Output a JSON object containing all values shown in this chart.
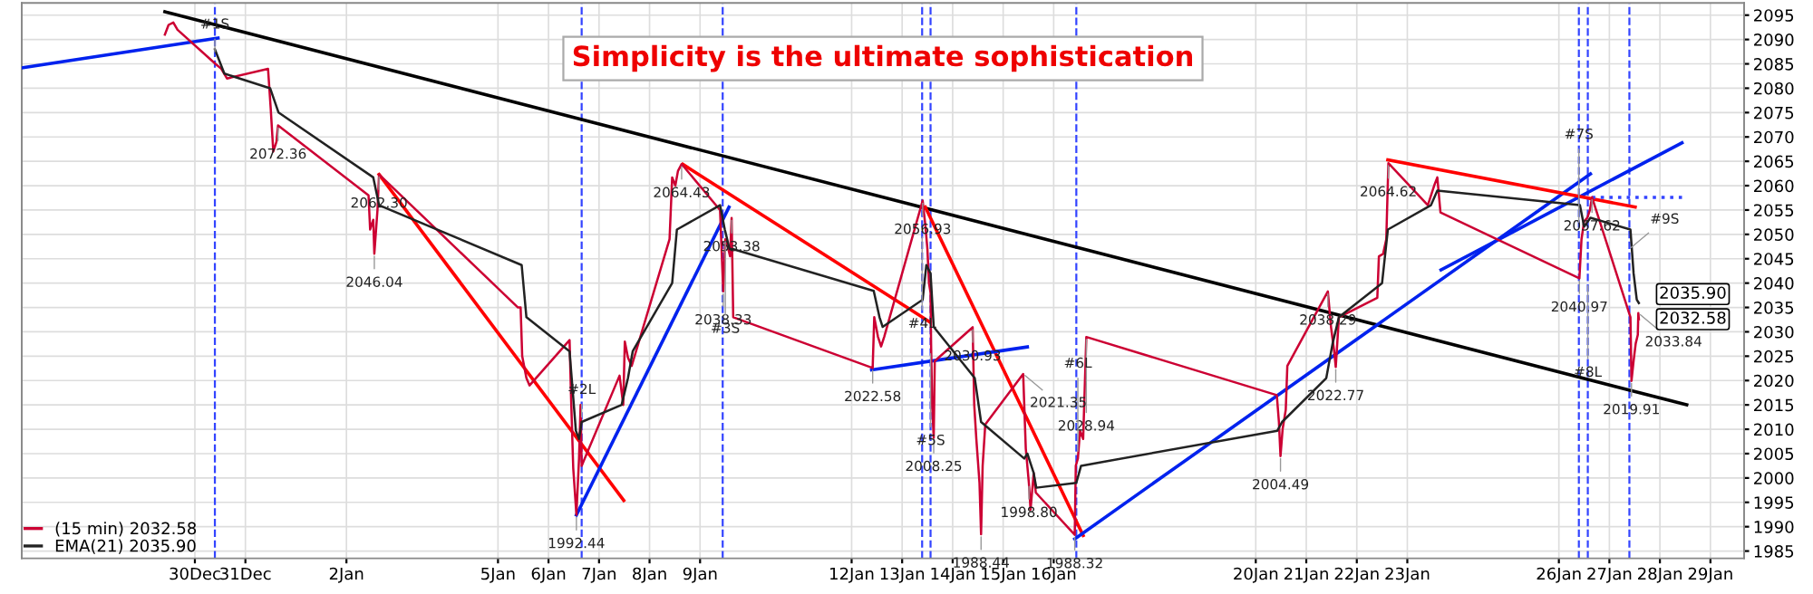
{
  "chart_data": {
    "type": "line",
    "xlim": [
      "2014-12-26T13:45",
      "2015-01-29T16:00"
    ],
    "ylim": [
      1983.5,
      2097.5
    ],
    "xticks": [
      {
        "value": "2014-12-30",
        "label": "30Dec"
      },
      {
        "value": "2014-12-31",
        "label": "31Dec"
      },
      {
        "value": "2015-01-02",
        "label": "2Jan"
      },
      {
        "value": "2015-01-05",
        "label": "5Jan"
      },
      {
        "value": "2015-01-06",
        "label": "6Jan"
      },
      {
        "value": "2015-01-07",
        "label": "7Jan"
      },
      {
        "value": "2015-01-08",
        "label": "8Jan"
      },
      {
        "value": "2015-01-09",
        "label": "9Jan"
      },
      {
        "value": "2015-01-12",
        "label": "12Jan"
      },
      {
        "value": "2015-01-13",
        "label": "13Jan"
      },
      {
        "value": "2015-01-14",
        "label": "14Jan"
      },
      {
        "value": "2015-01-15",
        "label": "15Jan"
      },
      {
        "value": "2015-01-16",
        "label": "16Jan"
      },
      {
        "value": "2015-01-20",
        "label": "20Jan"
      },
      {
        "value": "2015-01-21",
        "label": "21Jan"
      },
      {
        "value": "2015-01-22",
        "label": "22Jan"
      },
      {
        "value": "2015-01-23",
        "label": "23Jan"
      },
      {
        "value": "2015-01-26",
        "label": "26Jan"
      },
      {
        "value": "2015-01-27",
        "label": "27Jan"
      },
      {
        "value": "2015-01-28",
        "label": "28Jan"
      },
      {
        "value": "2015-01-29",
        "label": "29Jan"
      }
    ],
    "yticks": [
      1985,
      1990,
      1995,
      2000,
      2005,
      2010,
      2015,
      2020,
      2025,
      2030,
      2035,
      2040,
      2045,
      2050,
      2055,
      2060,
      2065,
      2070,
      2075,
      2080,
      2085,
      2090,
      2095
    ],
    "grid": true,
    "legend": "bottom left",
    "series": [
      {
        "name": "(15 min) 2032.58",
        "color": "#cc0033",
        "x": [
          "2014-12-29T09:45",
          "2014-12-29T11:30",
          "2014-12-29T13:45",
          "2014-12-29T15:45",
          "2014-12-30T09:45",
          "2014-12-30T12:30",
          "2014-12-30T15:15",
          "2014-12-31T10:45",
          "2014-12-31T12:00",
          "2014-12-31T13:15",
          "2014-12-31T14:45",
          "2014-12-31T15:30",
          "2015-01-02T10:30",
          "2015-01-02T11:15",
          "2015-01-02T12:45",
          "2015-01-02T13:15",
          "2015-01-02T14:45",
          "2015-01-02T15:30",
          "2015-01-05T09:30",
          "2015-01-05T10:45",
          "2015-01-05T11:30",
          "2015-01-05T13:30",
          "2015-01-05T15:00",
          "2015-01-06T10:00",
          "2015-01-06T10:45",
          "2015-01-06T11:45",
          "2015-01-06T13:15",
          "2015-01-06T14:30",
          "2015-01-06T15:15",
          "2015-01-06T15:45",
          "2015-01-07T09:45",
          "2015-01-07T11:30",
          "2015-01-07T12:15",
          "2015-01-07T13:45",
          "2015-01-07T15:30",
          "2015-01-08T09:30",
          "2015-01-08T10:45",
          "2015-01-08T12:15",
          "2015-01-08T13:30",
          "2015-01-08T15:15",
          "2015-01-09T09:30",
          "2015-01-09T11:00",
          "2015-01-09T12:00",
          "2015-01-09T13:15",
          "2015-01-09T14:15",
          "2015-01-09T15:00",
          "2015-01-09T15:45",
          "2015-01-12T10:00",
          "2015-01-12T10:45",
          "2015-01-12T12:30",
          "2015-01-12T14:00",
          "2015-01-12T15:30",
          "2015-01-13T09:45",
          "2015-01-13T11:00",
          "2015-01-13T12:00",
          "2015-01-13T12:45",
          "2015-01-13T13:30",
          "2015-01-13T13:45",
          "2015-01-13T14:15",
          "2015-01-13T15:00",
          "2015-01-13T15:30",
          "2015-01-14T09:30",
          "2015-01-14T10:15",
          "2015-01-14T11:15",
          "2015-01-14T12:45",
          "2015-01-14T13:30",
          "2015-01-14T14:15",
          "2015-01-14T15:30",
          "2015-01-15T09:30",
          "2015-01-15T10:45",
          "2015-01-15T12:15",
          "2015-01-15T13:00",
          "2015-01-15T14:30",
          "2015-01-15T15:30",
          "2015-01-16T10:00",
          "2015-01-16T10:30",
          "2015-01-16T11:30",
          "2015-01-16T12:30",
          "2015-01-16T14:00",
          "2015-01-16T15:30",
          "2015-01-20T10:00",
          "2015-01-20T11:00",
          "2015-01-20T11:45",
          "2015-01-20T12:45",
          "2015-01-20T14:15",
          "2015-01-20T15:00",
          "2015-01-21T10:15",
          "2015-01-21T11:45",
          "2015-01-21T13:15",
          "2015-01-21T14:00",
          "2015-01-21T15:30",
          "2015-01-22T09:45",
          "2015-01-22T10:30",
          "2015-01-22T12:30",
          "2015-01-22T14:00",
          "2015-01-22T15:00",
          "2015-01-23T09:45",
          "2015-01-23T11:15",
          "2015-01-23T12:45",
          "2015-01-23T14:15",
          "2015-01-23T15:45",
          "2015-01-26T09:45",
          "2015-01-26T10:45",
          "2015-01-26T12:00",
          "2015-01-26T13:30",
          "2015-01-26T14:45",
          "2015-01-26T15:45",
          "2015-01-27T10:00",
          "2015-01-27T10:30",
          "2015-01-27T11:30",
          "2015-01-27T12:30",
          "2015-01-27T13:30",
          "2015-01-27T13:45",
          "2015-01-27T14:00"
        ],
        "values": [
          2091,
          2093,
          2093.5,
          2092,
          2085,
          2084,
          2082,
          2084,
          2076,
          2067,
          2069,
          2072.36,
          2058,
          2051,
          2053,
          2046.04,
          2055,
          2062.3,
          2035,
          2035,
          2025,
          2020.5,
          2019,
          2028.3,
          2016,
          2002,
          1992.44,
          2004,
          2015,
          2002.5,
          2021,
          2015,
          2028,
          2024.7,
          2023,
          2049,
          2061.7,
          2060,
          2063,
          2064.43,
          2055,
          2038.33,
          2049,
          2047.3,
          2045.5,
          2053.38,
          2033,
          2022.58,
          2033,
          2029,
          2027,
          2029,
          2056.93,
          2052,
          2047,
          2040,
          2038,
          2027.6,
          2015,
          2008.25,
          2024,
          2030.93,
          2015,
          2008,
          1999,
          1988.44,
          2002.5,
          2011,
          2021.35,
          2006,
          1998.8,
          1993.5,
          2001,
          1997,
          1988.32,
          2002.5,
          2004,
          2009.7,
          2008,
          2028.94,
          2017,
          2011.5,
          2004.49,
          2010,
          2014,
          2023,
          2038.29,
          2031,
          2026,
          2022.77,
          2033,
          2037,
          2045.5,
          2046,
          2049,
          2064.62,
          2056,
          2058,
          2060,
          2061.7,
          2054.5,
          2040.97,
          2049,
          2052.7,
          2053.4,
          2055,
          2057.62,
          2033,
          2019.91,
          2024,
          2027.6,
          2029.4,
          2033.84,
          2032.58
        ],
        "value_labels": [
          null,
          null,
          null,
          null,
          null,
          null,
          null,
          null,
          null,
          null,
          null,
          null,
          null,
          null,
          null,
          null,
          null,
          null,
          null,
          null,
          null,
          null,
          null,
          null,
          null,
          null,
          null,
          null,
          null,
          null,
          null,
          null,
          null,
          null,
          null,
          null,
          null,
          null,
          null,
          null,
          null,
          null,
          null,
          null,
          null,
          null,
          null,
          null,
          null,
          null,
          null,
          null,
          null,
          null,
          null,
          null,
          null,
          null,
          null,
          null,
          null,
          null,
          null,
          null,
          null,
          null,
          null,
          null,
          null,
          null,
          null,
          null,
          null,
          null,
          null,
          null,
          null,
          null,
          null,
          null,
          null,
          null,
          null,
          null,
          null,
          null,
          null,
          null,
          null,
          null,
          null,
          null,
          null,
          null,
          null,
          null,
          null,
          null,
          null,
          null,
          null,
          null,
          null,
          null,
          null,
          null,
          null,
          null,
          null,
          null,
          null,
          null,
          null,
          "2032.58"
        ]
      },
      {
        "name": "EMA(21) 2035.90",
        "color": "#222222",
        "x": [
          "2014-12-30T09:30",
          "2014-12-30T14:00",
          "2014-12-31T11:45",
          "2014-12-31T15:45",
          "2015-01-02T12:45",
          "2015-01-02T15:30",
          "2015-01-05T11:15",
          "2015-01-05T13:30",
          "2015-01-06T10:00",
          "2015-01-06T13:00",
          "2015-01-06T14:30",
          "2015-01-06T15:45",
          "2015-01-07T10:45",
          "2015-01-07T13:45",
          "2015-01-07T16:00",
          "2015-01-08T10:45",
          "2015-01-08T13:00",
          "2015-01-09T09:30",
          "2015-01-09T11:45",
          "2015-01-09T14:00",
          "2015-01-09T15:30",
          "2015-01-12T10:30",
          "2015-01-12T13:15",
          "2015-01-12T14:45",
          "2015-01-13T09:45",
          "2015-01-13T11:30",
          "2015-01-13T13:30",
          "2015-01-13T15:00",
          "2015-01-14T10:30",
          "2015-01-14T13:30",
          "2015-01-15T10:00",
          "2015-01-15T11:30",
          "2015-01-15T14:30",
          "2015-01-15T15:45",
          "2015-01-16T10:45",
          "2015-01-16T13:00",
          "2015-01-20T10:15",
          "2015-01-20T12:30",
          "2015-01-21T09:30",
          "2015-01-21T12:30",
          "2015-01-21T15:30",
          "2015-01-22T12:00",
          "2015-01-22T14:45",
          "2015-01-23T11:15",
          "2015-01-23T14:15",
          "2015-01-26T10:00",
          "2015-01-26T12:00",
          "2015-01-26T15:00",
          "2015-01-27T10:00",
          "2015-01-27T11:30",
          "2015-01-27T13:00",
          "2015-01-27T14:00"
        ],
        "values": [
          2088,
          2083,
          2080,
          2075,
          2061.7,
          2056,
          2043.7,
          2033,
          2026,
          2009.7,
          2008,
          2011.5,
          2015,
          2020.5,
          2026,
          2040,
          2051,
          2056,
          2051,
          2047,
          2047,
          2038.4,
          2033,
          2031,
          2036.6,
          2043.7,
          2042,
          2031,
          2020.5,
          2011.5,
          2004,
          2005,
          2001,
          1998,
          1999,
          2002.5,
          2009.7,
          2011.5,
          2020.5,
          2027.6,
          2033,
          2040,
          2051,
          2056,
          2059,
          2056,
          2051.6,
          2053.4,
          2051,
          2042,
          2036.6,
          2035.9
        ],
        "value_labels": [
          null,
          null,
          null,
          null,
          null,
          null,
          null,
          null,
          null,
          null,
          null,
          null,
          null,
          null,
          null,
          null,
          null,
          null,
          null,
          null,
          null,
          null,
          null,
          null,
          null,
          null,
          null,
          null,
          null,
          null,
          null,
          null,
          null,
          null,
          null,
          null,
          null,
          null,
          null,
          null,
          null,
          null,
          null,
          null,
          null,
          null,
          null,
          null,
          null,
          null,
          null,
          "2035.90"
        ]
      },
      {
        "color": "#000000",
        "x": [
          "2014-12-29T09:45",
          "2015-01-28T12:45"
        ],
        "values": [
          2095.7,
          2015
        ]
      },
      {
        "color": "#0022ee",
        "x": [
          "2014-12-26T14:15",
          "2014-12-30T11:00"
        ],
        "values": [
          2084.2,
          2090.3
        ]
      },
      {
        "color": "#ff0000",
        "x": [
          "2015-01-02T15:30",
          "2015-01-07T11:45"
        ],
        "values": [
          2062.3,
          1995.4
        ]
      },
      {
        "color": "#0022ee",
        "x": [
          "2015-01-06T13:15",
          "2015-01-09T13:45"
        ],
        "values": [
          1992.4,
          2055.6
        ]
      },
      {
        "color": "#ff0000",
        "x": [
          "2015-01-08T15:45",
          "2015-01-13T13:15"
        ],
        "values": [
          2064.4,
          2032
        ]
      },
      {
        "color": "#ff0000",
        "x": [
          "2015-01-13T11:00",
          "2015-01-16T14:00"
        ],
        "values": [
          2055.6,
          1988.2
        ]
      },
      {
        "color": "#0022ee",
        "x": [
          "2015-01-12T09:30",
          "2015-01-15T11:30"
        ],
        "values": [
          2022.2,
          2026.9
        ]
      },
      {
        "color": "#0022ee",
        "x": [
          "2015-01-16T10:00",
          "2015-01-26T15:00"
        ],
        "values": [
          1987.5,
          2062.4
        ]
      },
      {
        "color": "#0022ee",
        "x": [
          "2015-01-23T16:00",
          "2015-01-28T10:30"
        ],
        "values": [
          2042.7,
          2068.8
        ]
      },
      {
        "color": "#ff0000",
        "x": [
          "2015-01-22T14:45",
          "2015-01-27T12:15"
        ],
        "values": [
          2065.3,
          2055.6
        ]
      },
      {
        "color": "#3344ff",
        "line_style": "dotted",
        "x": [
          "2015-01-26T15:45",
          "2015-01-28T10:30"
        ],
        "values": [
          2057.6,
          2057.6
        ]
      }
    ],
    "ref_lines": [
      {
        "axis": "x",
        "value": "2014-12-30T09:30",
        "color": "#3344ff",
        "line_style": "dashed"
      },
      {
        "axis": "x",
        "value": "2015-01-06T15:45",
        "color": "#3344ff",
        "line_style": "dashed"
      },
      {
        "axis": "x",
        "value": "2015-01-09T10:45",
        "color": "#3344ff",
        "line_style": "dashed"
      },
      {
        "axis": "x",
        "value": "2015-01-13T09:30",
        "color": "#3344ff",
        "line_style": "dashed"
      },
      {
        "axis": "x",
        "value": "2015-01-13T13:30",
        "color": "#3344ff",
        "line_style": "dashed"
      },
      {
        "axis": "x",
        "value": "2015-01-16T10:45",
        "color": "#3344ff",
        "line_style": "dashed"
      },
      {
        "axis": "x",
        "value": "2015-01-26T09:30",
        "color": "#3344ff",
        "line_style": "dashed"
      },
      {
        "axis": "x",
        "value": "2015-01-26T13:45",
        "color": "#3344ff",
        "line_style": "dashed"
      },
      {
        "axis": "x",
        "value": "2015-01-27T09:30",
        "color": "#3344ff",
        "line_style": "dashed"
      }
    ],
    "annotations": [
      "Simplicity is the ultimate sophistication",
      {
        "text": "2072.36",
        "x": "2014-12-31T15:30",
        "y": 2072.36
      },
      {
        "text": "2062.30",
        "x": "2015-01-02T15:30",
        "y": 2062.3
      },
      {
        "text": "2046.04",
        "x": "2015-01-02T13:15",
        "y": 2046.04
      },
      {
        "text": "1992.44",
        "x": "2015-01-06T13:15",
        "y": 1992.44
      },
      {
        "text": "2064.43",
        "x": "2015-01-08T15:15",
        "y": 2064.43
      },
      {
        "text": "2053.38",
        "x": "2015-01-09T15:00",
        "y": 2053.38
      },
      {
        "text": "2038.33",
        "x": "2015-01-09T11:00",
        "y": 2038.33
      },
      {
        "text": "2056.93",
        "x": "2015-01-13T09:45",
        "y": 2056.93
      },
      {
        "text": "2022.58",
        "x": "2015-01-12T10:00",
        "y": 2022.58
      },
      {
        "text": "2030.93",
        "x": "2015-01-14T09:30",
        "y": 2030.93
      },
      {
        "text": "2008.25",
        "x": "2015-01-13T15:00",
        "y": 2008.25
      },
      {
        "text": "2021.35",
        "x": "2015-01-15T09:30",
        "y": 2021.35
      },
      {
        "text": "1988.44",
        "x": "2015-01-14T13:30",
        "y": 1988.44
      },
      {
        "text": "1998.80",
        "x": "2015-01-15T12:15",
        "y": 1998.8
      },
      {
        "text": "1988.32",
        "x": "2015-01-16T10:00",
        "y": 1988.32
      },
      {
        "text": "2028.94",
        "x": "2015-01-16T15:30",
        "y": 2028.94
      },
      {
        "text": "2004.49",
        "x": "2015-01-20T11:45",
        "y": 2004.49
      },
      {
        "text": "2038.29",
        "x": "2015-01-21T10:15",
        "y": 2038.29
      },
      {
        "text": "2022.77",
        "x": "2015-01-21T14:00",
        "y": 2022.77
      },
      {
        "text": "2064.62",
        "x": "2015-01-22T15:00",
        "y": 2064.62
      },
      {
        "text": "2040.97",
        "x": "2015-01-26T09:45",
        "y": 2040.97
      },
      {
        "text": "2057.62",
        "x": "2015-01-26T15:45",
        "y": 2057.62
      },
      {
        "text": "2019.91",
        "x": "2015-01-27T10:30",
        "y": 2019.91
      },
      {
        "text": "2033.84",
        "x": "2015-01-27T13:45",
        "y": 2033.84
      },
      {
        "text": "#1S",
        "x": "2014-12-30T09:30",
        "y": 2087
      },
      {
        "text": "#2L",
        "x": "2015-01-06T15:45",
        "y": 2012
      },
      {
        "text": "#3S",
        "x": "2015-01-09T12:00",
        "y": 2049
      },
      {
        "text": "#4L",
        "x": "2015-01-13T09:30",
        "y": 2050
      },
      {
        "text": "#5S",
        "x": "2015-01-13T13:30",
        "y": 2026
      },
      {
        "text": "#6L",
        "x": "2015-01-16T11:30",
        "y": 2005
      },
      {
        "text": "#7S",
        "x": "2015-01-26T09:30",
        "y": 2052
      },
      {
        "text": "#8L",
        "x": "2015-01-26T13:45",
        "y": 2040
      },
      {
        "text": "#9S",
        "x": "2015-01-27T09:30",
        "y": 2047
      }
    ]
  }
}
